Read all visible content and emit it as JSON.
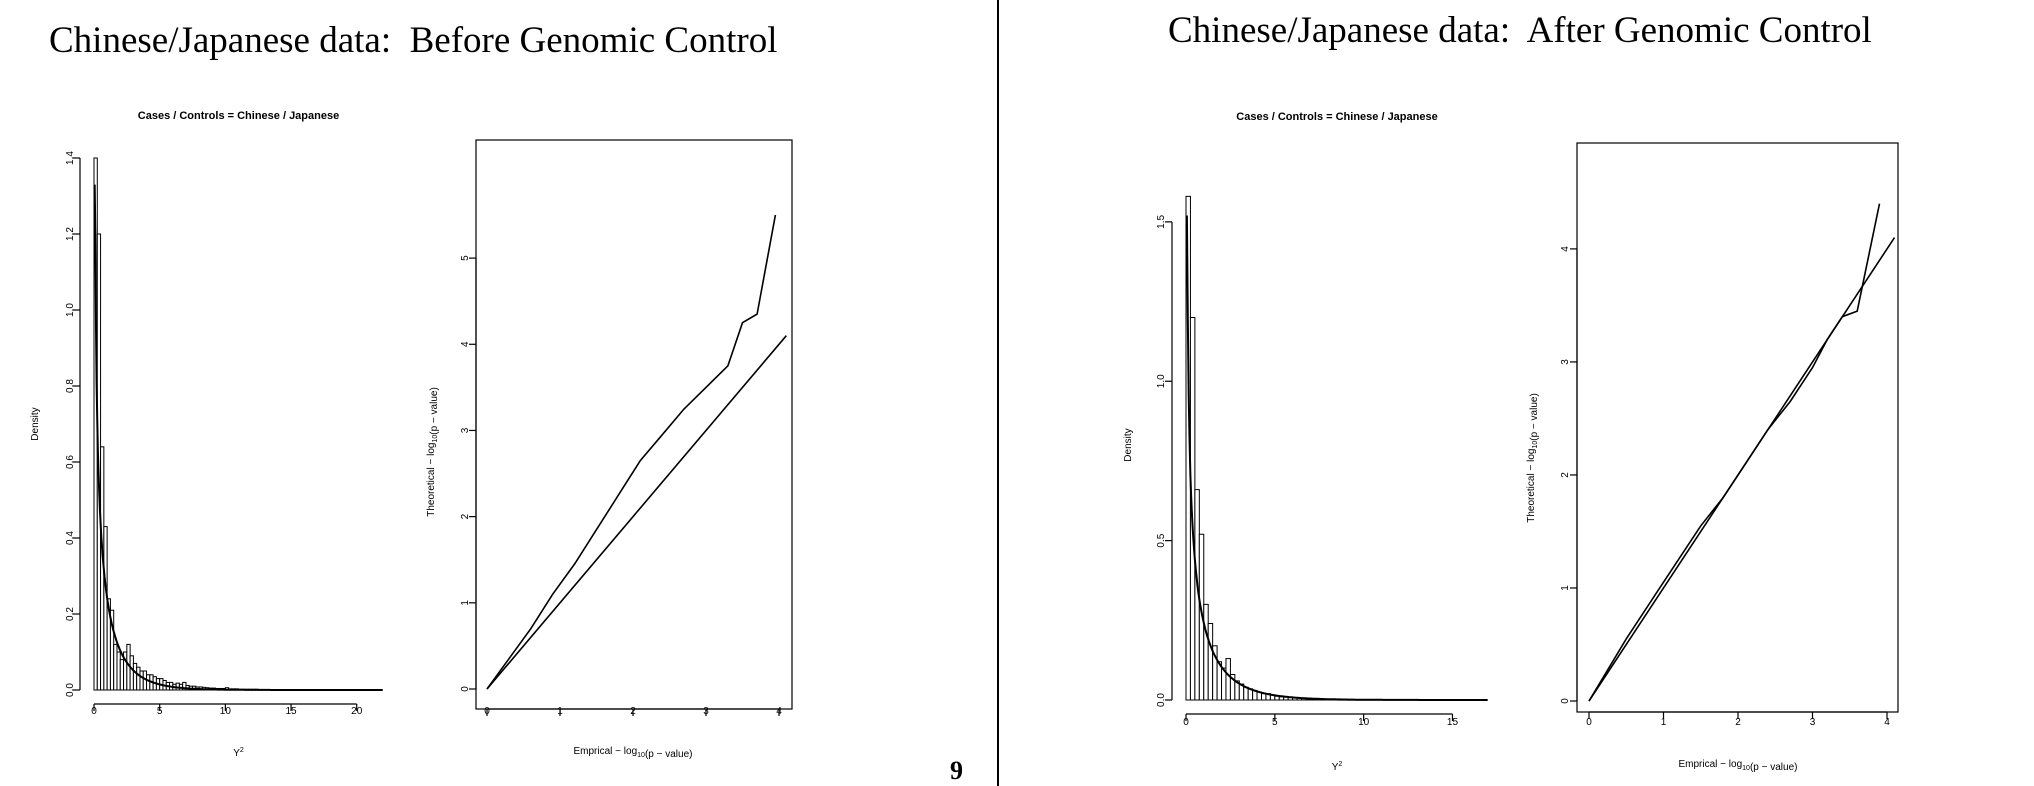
{
  "slide": {
    "left_title": "Chinese/Japanese data:  Before Genomic Control",
    "right_title": "Chinese/Japanese data:  After Genomic Control",
    "page_number": "9"
  },
  "chart_data": [
    {
      "id": "before-histogram",
      "type": "bar",
      "title": "Cases / Controls = Chinese / Japanese",
      "xlabel": "Y²",
      "ylabel": "Density",
      "xlim": [
        0,
        22
      ],
      "ylim": [
        0,
        1.4
      ],
      "xticks": [
        "0",
        "5",
        "10",
        "15",
        "20"
      ],
      "yticks": [
        "0.0",
        "0.2",
        "0.4",
        "0.6",
        "0.8",
        "1.0",
        "1.2",
        "1.4"
      ],
      "bin_width": 0.25,
      "values": [
        1.4,
        1.2,
        0.64,
        0.43,
        0.24,
        0.21,
        0.12,
        0.1,
        0.08,
        0.1,
        0.12,
        0.09,
        0.07,
        0.06,
        0.05,
        0.05,
        0.04,
        0.04,
        0.035,
        0.03,
        0.03,
        0.025,
        0.02,
        0.02,
        0.015,
        0.018,
        0.015,
        0.02,
        0.012,
        0.01,
        0.01,
        0.008,
        0.008,
        0.007,
        0.006,
        0.005,
        0.005,
        0.004,
        0.004,
        0.004,
        0.006,
        0.003,
        0.003,
        0.003,
        0.002,
        0.002,
        0.002,
        0.002,
        0.002,
        0.002
      ],
      "density_curve": "chi-square(1)"
    },
    {
      "id": "before-qq",
      "type": "line",
      "xlabel": "Emprical − log10(p − value)",
      "ylabel": "Theoretical − log10(p − value)",
      "xlim": [
        0,
        4
      ],
      "ylim": [
        0,
        5.5
      ],
      "xticks": [
        "0",
        "1",
        "2",
        "3",
        "4"
      ],
      "yticks": [
        "0",
        "1",
        "2",
        "3",
        "4",
        "5"
      ],
      "series": [
        {
          "x": [
            0,
            0.3,
            0.6,
            0.9,
            1.2,
            1.5,
            1.8,
            2.1,
            2.4,
            2.7,
            3.0,
            3.3,
            3.5,
            3.7,
            3.95
          ],
          "y": [
            0,
            0.35,
            0.7,
            1.1,
            1.45,
            1.85,
            2.25,
            2.65,
            2.95,
            3.25,
            3.5,
            3.75,
            4.25,
            4.35,
            5.5
          ]
        },
        {
          "x": [
            0,
            4.1
          ],
          "y": [
            0,
            4.1
          ]
        }
      ]
    },
    {
      "id": "after-histogram",
      "type": "bar",
      "title": "Cases / Controls = Chinese / Japanese",
      "xlabel": "Y²",
      "ylabel": "Density",
      "xlim": [
        0,
        17
      ],
      "ylim": [
        0,
        1.6
      ],
      "xticks": [
        "0",
        "5",
        "10",
        "15"
      ],
      "yticks": [
        "0.0",
        "0.5",
        "1.0",
        "1.5"
      ],
      "bin_width": 0.25,
      "values": [
        1.58,
        1.2,
        0.66,
        0.52,
        0.3,
        0.24,
        0.17,
        0.12,
        0.1,
        0.13,
        0.08,
        0.06,
        0.05,
        0.04,
        0.035,
        0.03,
        0.025,
        0.02,
        0.02,
        0.015,
        0.012,
        0.01,
        0.01,
        0.008,
        0.007,
        0.006,
        0.005,
        0.004,
        0.004,
        0.003,
        0.003,
        0.003,
        0.002,
        0.002
      ],
      "density_curve": "chi-square(1)"
    },
    {
      "id": "after-qq",
      "type": "line",
      "xlabel": "Emprical − log10(p − value)",
      "ylabel": "Theoretical − log10(p − value)",
      "xlim": [
        0,
        4
      ],
      "ylim": [
        0,
        4.3
      ],
      "xticks": [
        "0",
        "1",
        "2",
        "3",
        "4"
      ],
      "yticks": [
        "0",
        "1",
        "2",
        "3",
        "4"
      ],
      "series": [
        {
          "x": [
            0,
            0.5,
            0.9,
            1.2,
            1.5,
            1.8,
            2.1,
            2.4,
            2.7,
            3.0,
            3.2,
            3.4,
            3.6,
            3.9
          ],
          "y": [
            0,
            0.55,
            0.95,
            1.25,
            1.55,
            1.8,
            2.1,
            2.4,
            2.65,
            2.95,
            3.2,
            3.4,
            3.45,
            4.4
          ]
        },
        {
          "x": [
            0,
            4.1
          ],
          "y": [
            0,
            4.1
          ]
        }
      ]
    }
  ]
}
